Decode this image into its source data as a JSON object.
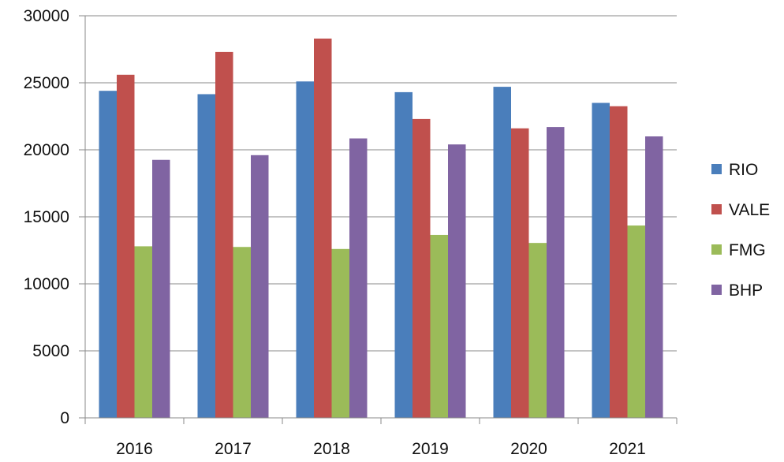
{
  "chart_data": {
    "type": "bar",
    "title": "",
    "xlabel": "",
    "ylabel": "",
    "categories": [
      "2016",
      "2017",
      "2018",
      "2019",
      "2020",
      "2021"
    ],
    "ylim": [
      0,
      30000
    ],
    "yticks": [
      0,
      5000,
      10000,
      15000,
      20000,
      25000,
      30000
    ],
    "y_tick_labels": [
      "0",
      "5000",
      "10000",
      "15000",
      "20000",
      "25000",
      "30000"
    ],
    "grid": "horizontal",
    "legend_position": "right",
    "series": [
      {
        "name": "RIO",
        "color": "#4a7ebb",
        "values": [
          24400,
          24150,
          25100,
          24300,
          24700,
          23500
        ]
      },
      {
        "name": "VALE",
        "color": "#c0504d",
        "values": [
          25600,
          27300,
          28300,
          22300,
          21600,
          23250
        ]
      },
      {
        "name": "FMG",
        "color": "#9bbb59",
        "values": [
          12800,
          12750,
          12600,
          13650,
          13050,
          14350
        ]
      },
      {
        "name": "BHP",
        "color": "#8064a2",
        "values": [
          19250,
          19600,
          20850,
          20400,
          21700,
          21000
        ]
      }
    ]
  }
}
